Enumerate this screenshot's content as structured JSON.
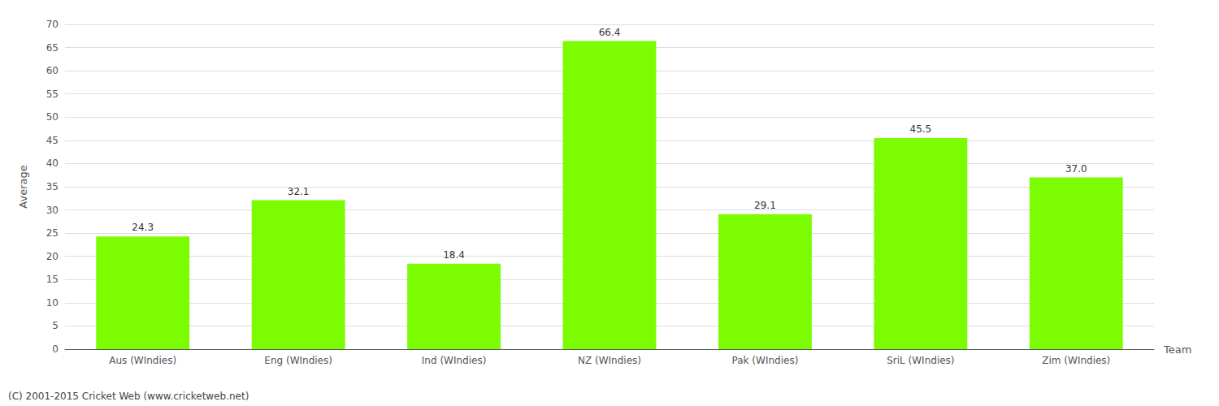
{
  "chart_data": {
    "type": "bar",
    "categories": [
      "Aus (WIndies)",
      "Eng (WIndies)",
      "Ind (WIndies)",
      "NZ (WIndies)",
      "Pak (WIndies)",
      "SriL (WIndies)",
      "Zim (WIndies)"
    ],
    "values": [
      24.3,
      32.1,
      18.4,
      66.4,
      29.1,
      45.5,
      37.0
    ],
    "value_labels": [
      "24.3",
      "32.1",
      "18.4",
      "66.4",
      "29.1",
      "45.5",
      "37.0"
    ],
    "data_labels": true,
    "color": "#7cfc00",
    "xlabel": "Team",
    "ylabel": "Average",
    "ylim": [
      0,
      70
    ],
    "yticks": [
      0,
      5,
      10,
      15,
      20,
      25,
      30,
      35,
      40,
      45,
      50,
      55,
      60,
      65,
      70
    ],
    "grid": true,
    "annotations": [
      "(C) 2001-2015 Cricket Web (www.cricketweb.net)"
    ]
  }
}
